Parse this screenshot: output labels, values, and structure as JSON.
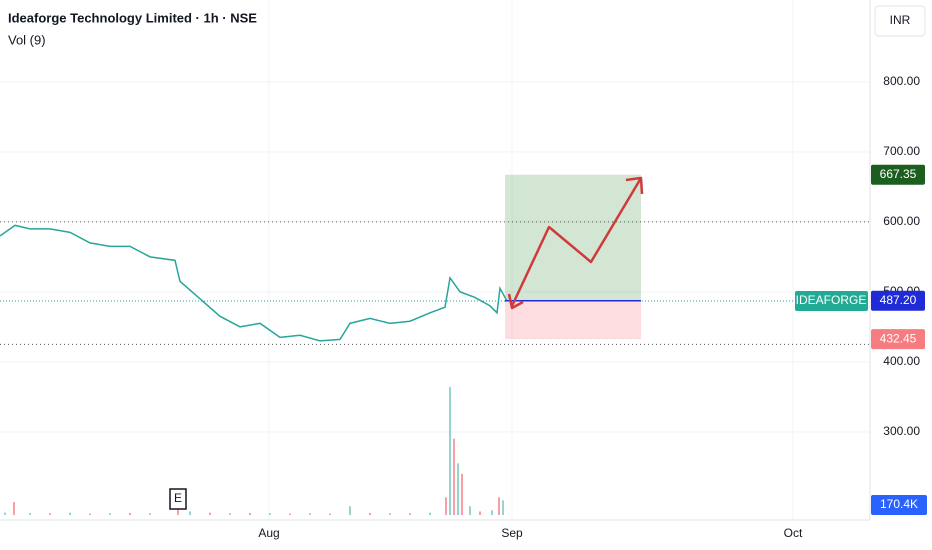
{
  "chart_data": {
    "type": "line",
    "title": "Ideaforge Technology Limited · 1h · NSE",
    "currency": "INR",
    "xlim": [
      0,
      87
    ],
    "xticks": [
      {
        "value": 26.9,
        "label": "Aug"
      },
      {
        "value": 51.2,
        "label": "Sep"
      },
      {
        "value": 79.3,
        "label": "Oct"
      }
    ],
    "ylim": [
      174,
      917
    ],
    "yticks": [
      {
        "value": 300,
        "label": "300.00"
      },
      {
        "value": 400,
        "label": "400.00"
      },
      {
        "value": 500,
        "label": "500.00"
      },
      {
        "value": 600,
        "label": "600.00"
      },
      {
        "value": 700,
        "label": "700.00"
      },
      {
        "value": 800,
        "label": "800.00"
      }
    ],
    "grid": true,
    "horizontal_lines": [
      600,
      425
    ],
    "x": [
      0,
      1.5,
      3,
      5,
      7,
      9,
      11,
      13,
      15,
      17.5,
      18,
      20,
      22,
      24,
      26,
      28,
      30,
      32,
      34,
      35,
      37,
      39,
      41,
      43,
      44.5,
      45,
      46,
      47.5,
      49,
      49.7,
      50,
      50.7
    ],
    "series": [
      {
        "name": "IDEAFORGE",
        "color": "#26a69a",
        "values": [
          580,
          595,
          590,
          590,
          585,
          570,
          565,
          565,
          550,
          545,
          515,
          490,
          465,
          450,
          455,
          435,
          438,
          430,
          432,
          455,
          462,
          455,
          458,
          470,
          478,
          520,
          500,
          492,
          480,
          470,
          505,
          487
        ]
      }
    ],
    "position": {
      "entry": 487.2,
      "target": 667.35,
      "stop": 432.45,
      "entry_label": "487.20",
      "target_label": "667.35",
      "stop_label": "432.45"
    },
    "events": [
      {
        "x": 17.8,
        "label": "E"
      }
    ],
    "volume": {
      "name": "Vol (9)",
      "color": "#2962ff",
      "y2lim": [
        0,
        8776
      ],
      "x": [
        0.5,
        1.4,
        3,
        5,
        7,
        9,
        11,
        13,
        15,
        17.8,
        19,
        21,
        23,
        25,
        27,
        29,
        31,
        33,
        35,
        37,
        39,
        41,
        43,
        44.6,
        45.0,
        45.4,
        45.8,
        46.2,
        47,
        48,
        49.2,
        49.9,
        50.3
      ],
      "values": [
        40,
        220,
        35,
        30,
        40,
        25,
        30,
        35,
        30,
        220,
        60,
        40,
        30,
        35,
        30,
        25,
        30,
        25,
        150,
        35,
        30,
        30,
        40,
        300,
        2180,
        1300,
        880,
        700,
        150,
        60,
        80,
        300,
        250
      ],
      "last": 170.4,
      "last_label": "170.4K"
    }
  }
}
